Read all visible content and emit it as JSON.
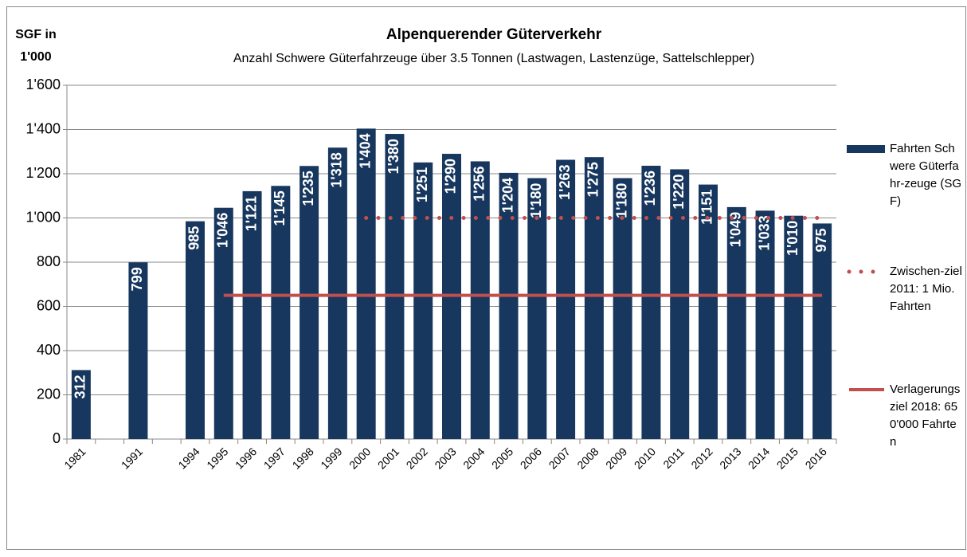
{
  "chart_data": {
    "type": "bar",
    "title": "Alpenquerender Güterverkehr",
    "subtitle": "Anzahl Schwere Güterfahrzeuge über 3.5 Tonnen (Lastwagen, Lastenzüge, Sattelschlepper)",
    "y_axis_label": "SGF in 1'000",
    "categories": [
      "1981",
      null,
      "1991",
      null,
      "1994",
      "1995",
      "1996",
      "1997",
      "1998",
      "1999",
      "2000",
      "2001",
      "2002",
      "2003",
      "2004",
      "2005",
      "2006",
      "2007",
      "2008",
      "2009",
      "2010",
      "2011",
      "2012",
      "2013",
      "2014",
      "2015",
      "2016"
    ],
    "series": [
      {
        "name": "Fahrten Schwere Güterfahr-zeuge (SGF)",
        "type": "bar",
        "color": "#17375e",
        "values": [
          312,
          null,
          799,
          null,
          985,
          1046,
          1121,
          1145,
          1235,
          1318,
          1404,
          1380,
          1251,
          1290,
          1256,
          1204,
          1180,
          1263,
          1275,
          1180,
          1236,
          1220,
          1151,
          1049,
          1033,
          1010,
          975
        ],
        "value_labels": [
          "312",
          null,
          "799",
          null,
          "985",
          "1'046",
          "1'121",
          "1'145",
          "1'235",
          "1'318",
          "1'404",
          "1'380",
          "1'251",
          "1'290",
          "1'256",
          "1'204",
          "1'180",
          "1'263",
          "1'275",
          "1'180",
          "1'236",
          "1'220",
          "1'151",
          "1'049",
          "1'033",
          "1'010",
          "975"
        ]
      },
      {
        "name": "Zwischen-ziel 2011: 1 Mio. Fahrten",
        "type": "line",
        "style": "dotted",
        "color": "#c0504d",
        "values": [
          null,
          null,
          null,
          null,
          null,
          null,
          null,
          null,
          null,
          null,
          1000,
          1000,
          1000,
          1000,
          1000,
          1000,
          1000,
          1000,
          1000,
          1000,
          1000,
          1000,
          1000,
          1000,
          1000,
          1000,
          1000
        ]
      },
      {
        "name": "Verlagerungsziel 2018: 650'000 Fahrten",
        "type": "line",
        "style": "solid",
        "color": "#c0504d",
        "values": [
          null,
          null,
          null,
          null,
          null,
          650,
          650,
          650,
          650,
          650,
          650,
          650,
          650,
          650,
          650,
          650,
          650,
          650,
          650,
          650,
          650,
          650,
          650,
          650,
          650,
          650,
          650
        ]
      }
    ],
    "ylim": [
      0,
      1600
    ],
    "yticks": [
      0,
      200,
      400,
      600,
      800,
      {
        "value": 1000,
        "label": "1'000"
      },
      {
        "value": 1200,
        "label": "1'200"
      },
      {
        "value": 1400,
        "label": "1'400"
      },
      {
        "value": 1600,
        "label": "1'600"
      }
    ],
    "grid": true,
    "legend": "right"
  }
}
